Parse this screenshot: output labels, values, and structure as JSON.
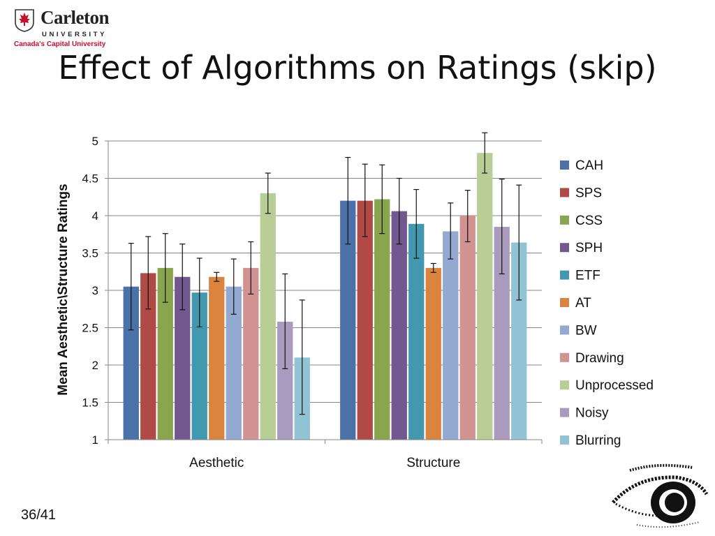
{
  "header": {
    "logo_name": "Carleton",
    "logo_sub": "UNIVERSITY",
    "logo_tagline": "Canada's Capital University",
    "logo_brand_color": "#c8102e"
  },
  "slide": {
    "title": "Effect of Algorithms on Ratings (skip)",
    "page_number": "36/41"
  },
  "chart_data": {
    "type": "bar",
    "title": "",
    "xlabel": "",
    "ylabel": "Mean Aesthetic\\Structure Ratings",
    "ylim": [
      1,
      5
    ],
    "yticks": [
      "1",
      "1.5",
      "2",
      "2.5",
      "3",
      "3.5",
      "4",
      "4.5",
      "5"
    ],
    "grid": true,
    "legend_position": "right",
    "categories": [
      "Aesthetic",
      "Structure"
    ],
    "series": [
      {
        "name": "CAH",
        "color": "#4a72a8",
        "values": [
          3.05,
          4.2
        ],
        "errors": [
          [
            2.47,
            3.63
          ],
          [
            3.62,
            4.78
          ]
        ]
      },
      {
        "name": "SPS",
        "color": "#b04a47",
        "values": [
          3.23,
          4.2
        ],
        "errors": [
          [
            2.75,
            3.72
          ],
          [
            3.72,
            4.69
          ]
        ]
      },
      {
        "name": "CSS",
        "color": "#89a54e",
        "values": [
          3.3,
          4.22
        ],
        "errors": [
          [
            2.84,
            3.76
          ],
          [
            3.76,
            4.68
          ]
        ]
      },
      {
        "name": "SPH",
        "color": "#71588f",
        "values": [
          3.18,
          4.06
        ],
        "errors": [
          [
            2.74,
            3.62
          ],
          [
            3.62,
            4.5
          ]
        ]
      },
      {
        "name": "ETF",
        "color": "#4298af",
        "values": [
          2.97,
          3.89
        ],
        "errors": [
          [
            2.51,
            3.43
          ],
          [
            3.43,
            4.35
          ]
        ]
      },
      {
        "name": "AT",
        "color": "#db843d",
        "values": [
          3.18,
          3.3
        ],
        "errors": [
          [
            3.12,
            3.24
          ],
          [
            3.24,
            3.36
          ]
        ]
      },
      {
        "name": "BW",
        "color": "#93a9cf",
        "values": [
          3.05,
          3.79
        ],
        "errors": [
          [
            2.68,
            3.42
          ],
          [
            3.42,
            4.17
          ]
        ]
      },
      {
        "name": "Drawing",
        "color": "#d19392",
        "values": [
          3.3,
          4.0
        ],
        "errors": [
          [
            2.95,
            3.65
          ],
          [
            3.65,
            4.34
          ]
        ]
      },
      {
        "name": "Unprocessed",
        "color": "#b9cd96",
        "values": [
          4.3,
          4.84
        ],
        "errors": [
          [
            4.03,
            4.57
          ],
          [
            4.57,
            5.11
          ]
        ]
      },
      {
        "name": "Noisy",
        "color": "#a99bbd",
        "values": [
          2.58,
          3.85
        ],
        "errors": [
          [
            1.95,
            3.22
          ],
          [
            3.22,
            4.49
          ]
        ]
      },
      {
        "name": "Blurring",
        "color": "#91c3d5",
        "values": [
          2.1,
          3.64
        ],
        "errors": [
          [
            1.34,
            2.87
          ],
          [
            2.87,
            4.41
          ]
        ]
      }
    ]
  }
}
